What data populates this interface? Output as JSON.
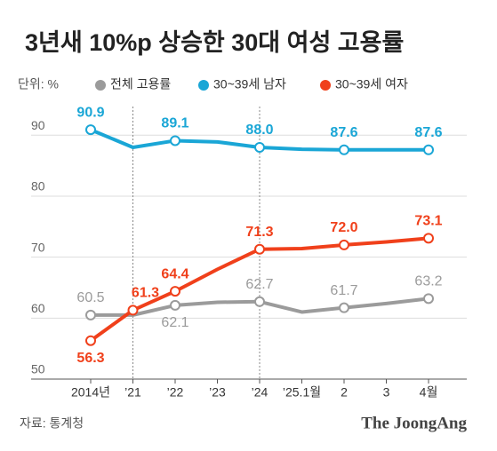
{
  "chart_data": {
    "type": "line",
    "title": "3년새 10%p 상승한 30대 여성 고용률",
    "unit_label": "단위: %",
    "source": "자료: 통계청",
    "brand": "The JoongAng",
    "categories": [
      "2014년",
      "’21",
      "’22",
      "’23",
      "’24",
      "’25.1월",
      "2",
      "3",
      "4월"
    ],
    "series": [
      {
        "name": "전체 고용률",
        "color": "#9b9b9b",
        "values": [
          60.5,
          60.5,
          62.1,
          62.6,
          62.7,
          61.0,
          61.7,
          62.4,
          63.2
        ],
        "value_labels": [
          "60.5",
          null,
          "62.1",
          null,
          "62.7",
          null,
          "61.7",
          null,
          "63.2"
        ]
      },
      {
        "name": "30~39세 남자",
        "color": "#1aa6d6",
        "values": [
          90.9,
          88.0,
          89.1,
          88.9,
          88.0,
          87.7,
          87.6,
          87.6,
          87.6
        ],
        "value_labels": [
          "90.9",
          null,
          "89.1",
          null,
          "88.0",
          null,
          "87.6",
          null,
          "87.6"
        ]
      },
      {
        "name": "30~39세 여자",
        "color": "#f0401b",
        "values": [
          56.3,
          61.3,
          64.4,
          68.0,
          71.3,
          71.4,
          72.0,
          72.5,
          73.1
        ],
        "value_labels": [
          "56.3",
          "61.3",
          "64.4",
          null,
          "71.3",
          null,
          "72.0",
          null,
          "73.1"
        ]
      }
    ],
    "ylim": [
      50,
      94.7
    ],
    "yticks": [
      50,
      60,
      70,
      80,
      90
    ],
    "grid": true
  }
}
